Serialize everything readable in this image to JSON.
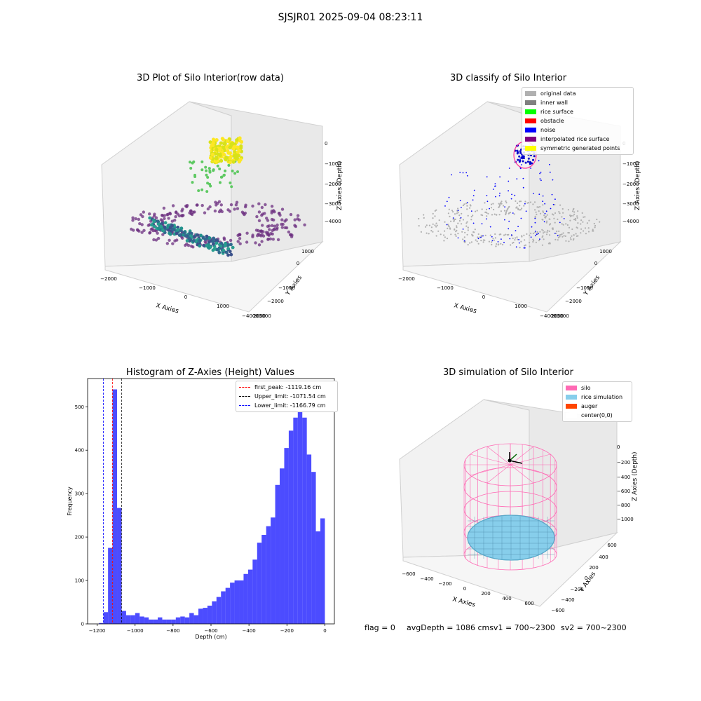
{
  "figure": {
    "suptitle": "SJSJR01 2025-09-04 08:23:11",
    "status": {
      "flag": "flag = 0",
      "avg_depth": "avgDepth = 1086 cmsv1 = 700~2300",
      "sv2": "sv2 = 700~2300"
    }
  },
  "panels": {
    "raw": {
      "title": "3D Plot of Silo Interior(row data)",
      "xlabel": "X Axies",
      "ylabel": "Y Axies",
      "zlabel": "Z Axies (Depth)",
      "x_ticks": [
        "−2000",
        "−1000",
        "0",
        "1000",
        "2000"
      ],
      "y_ticks": [
        "1000",
        "0",
        "−1000",
        "−2000",
        "−3000",
        "−4000"
      ],
      "z_ticks": [
        "0",
        "−1000",
        "−2000",
        "−3000",
        "−4000"
      ]
    },
    "classify": {
      "title": "3D classify of Silo Interior",
      "xlabel": "X Axies",
      "ylabel": "Y Axies",
      "zlabel": "Z Axies (Depth)",
      "x_ticks": [
        "−2000",
        "−1000",
        "0",
        "1000",
        "2000"
      ],
      "y_ticks": [
        "1000",
        "0",
        "−1000",
        "−2000",
        "−3000",
        "−4000"
      ],
      "z_ticks": [
        "0",
        "−1000",
        "−2000",
        "−3000",
        "−4000"
      ],
      "legend": [
        {
          "label": "original data",
          "color": "#b0b0b0"
        },
        {
          "label": "inner wall",
          "color": "#808080"
        },
        {
          "label": "rice surface",
          "color": "#00ff00"
        },
        {
          "label": "obstacle",
          "color": "#ff0000"
        },
        {
          "label": "noise",
          "color": "#0000ff"
        },
        {
          "label": "interpolated rice surface",
          "color": "#800080"
        },
        {
          "label": "symmetric generated points",
          "color": "#ffff00"
        }
      ]
    },
    "simulation": {
      "title": "3D simulation of Silo Interior",
      "xlabel": "X Axies",
      "ylabel": "Y Axies",
      "zlabel": "Z Axies (Depth)",
      "x_ticks": [
        "−600",
        "−400",
        "−200",
        "0",
        "200",
        "400",
        "600"
      ],
      "y_ticks": [
        "600",
        "400",
        "200",
        "0",
        "−200",
        "−400",
        "−600"
      ],
      "z_ticks": [
        "0",
        "−200",
        "−400",
        "−600",
        "−800",
        "−1000"
      ],
      "legend": [
        {
          "label": "silo",
          "color": "#ff69b4"
        },
        {
          "label": "rice simulation",
          "color": "#87ceeb"
        },
        {
          "label": "auger",
          "color": "#ff4500"
        },
        {
          "label": "center(0,0)",
          "color": "#ffffff"
        }
      ]
    }
  },
  "chart_data": {
    "type": "bar",
    "title": "Histogram of Z-Axies (Height) Values",
    "xlabel": "Depth (cm)",
    "ylabel": "Frequency",
    "xlim": [
      -1250,
      50
    ],
    "ylim": [
      0,
      565
    ],
    "x_ticks": [
      -1200,
      -1000,
      -800,
      -600,
      -400,
      -200,
      0
    ],
    "x_tick_labels": [
      "−1200",
      "−1000",
      "−800",
      "−600",
      "−400",
      "−200",
      "0"
    ],
    "y_ticks": [
      0,
      100,
      200,
      300,
      400,
      500
    ],
    "bar_color": "#0000ff",
    "bins": {
      "start": -1190,
      "width": 23.8,
      "counts": [
        2,
        27,
        175,
        540,
        267,
        30,
        20,
        20,
        25,
        17,
        15,
        10,
        10,
        15,
        10,
        10,
        10,
        15,
        17,
        15,
        25,
        20,
        35,
        37,
        42,
        52,
        62,
        75,
        83,
        95,
        100,
        100,
        115,
        125,
        148,
        187,
        205,
        225,
        245,
        320,
        358,
        405,
        445,
        475,
        490,
        475,
        390,
        350,
        213,
        243
      ]
    },
    "vlines": [
      {
        "x": -1119.16,
        "color": "#ff0000",
        "label": "first_peak: -1119.16 cm"
      },
      {
        "x": -1071.54,
        "color": "#000000",
        "label": "Upper_limit: -1071.54 cm"
      },
      {
        "x": -1166.79,
        "color": "#0000ff",
        "label": "Lower_limit: -1166.79 cm"
      }
    ]
  }
}
